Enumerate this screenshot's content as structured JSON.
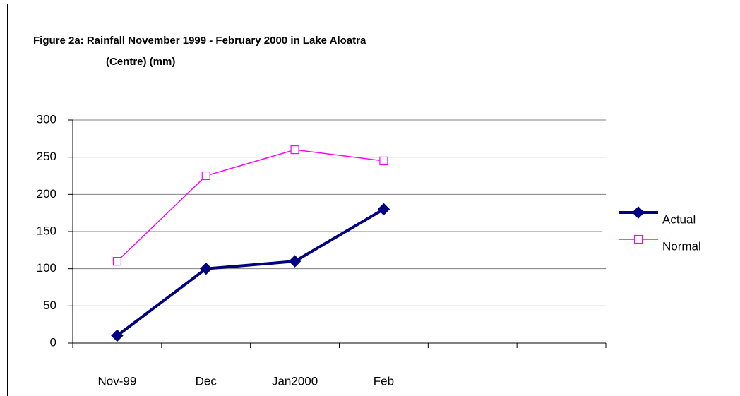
{
  "chart_data": {
    "type": "line",
    "title_lines": [
      "Figure 2a:  Rainfall November 1999 -  February 2000 in Lake Aloatra",
      "(Centre) (mm)"
    ],
    "categories": [
      "Nov-99",
      "Dec",
      "Jan2000",
      "Feb",
      null,
      null
    ],
    "series": [
      {
        "name": "Actual",
        "color": "#000080",
        "marker": "diamond",
        "values": [
          10,
          100,
          110,
          180,
          null,
          null
        ]
      },
      {
        "name": "Normal",
        "color": "#ff00ff",
        "marker": "square",
        "values": [
          110,
          225,
          260,
          245,
          null,
          null
        ]
      }
    ],
    "ylim": [
      0,
      300
    ],
    "yticks": [
      0,
      50,
      100,
      150,
      200,
      250,
      300
    ],
    "grid": true,
    "legend": "right"
  }
}
